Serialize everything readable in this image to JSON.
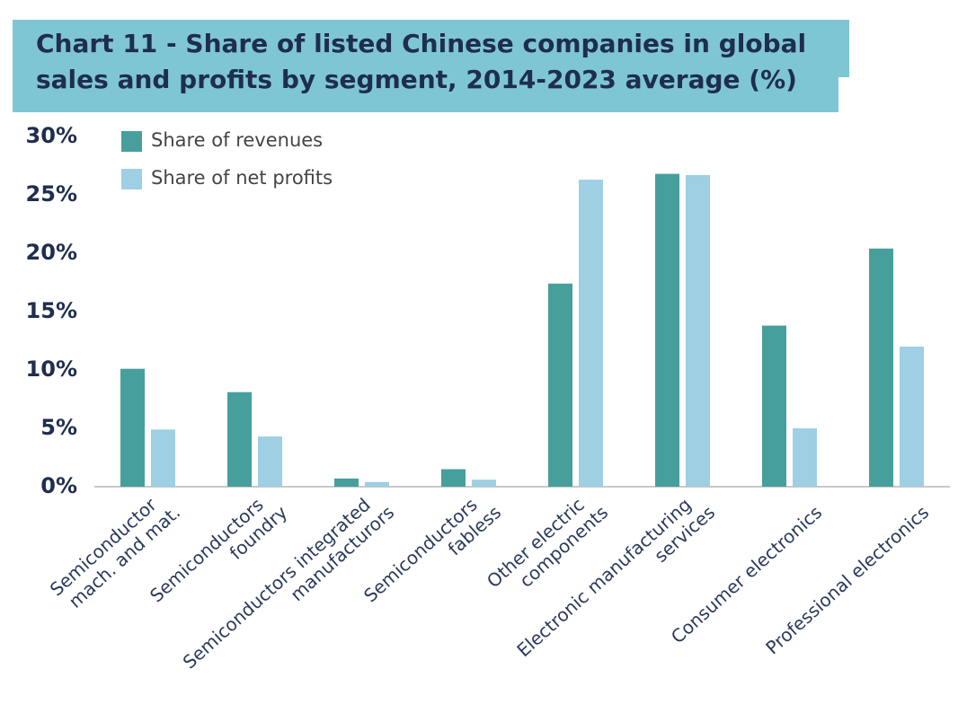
{
  "chart_data": {
    "type": "bar",
    "title": [
      "Chart 11 - Share of listed Chinese companies in global",
      "sales and profits by segment, 2014-2023 average (%)"
    ],
    "categories": [
      [
        "Semiconductor",
        "mach. and mat."
      ],
      [
        "Semiconductors",
        "foundry"
      ],
      [
        "Semiconductors integrated",
        "manufacturors"
      ],
      [
        "Semiconductors",
        "fabless"
      ],
      [
        "Other electric",
        "components"
      ],
      [
        "Electronic manufacturing",
        "services"
      ],
      [
        "Consumer electronics"
      ],
      [
        "Professional electronics"
      ]
    ],
    "series": [
      {
        "name": "Share of revenues",
        "color": "#479f9c",
        "values": [
          10.1,
          8.1,
          0.7,
          1.5,
          17.4,
          26.8,
          13.8,
          20.4
        ]
      },
      {
        "name": "Share of net profits",
        "color": "#9ecfe3",
        "values": [
          4.9,
          4.3,
          0.4,
          0.6,
          26.3,
          26.7,
          5.0,
          12.0
        ]
      }
    ],
    "ylim": [
      0,
      30
    ],
    "yticks": [
      {
        "value": 0,
        "label": "0%"
      },
      {
        "value": 5,
        "label": "5%"
      },
      {
        "value": 10,
        "label": "10%"
      },
      {
        "value": 15,
        "label": "15%"
      },
      {
        "value": 20,
        "label": "20%"
      },
      {
        "value": 25,
        "label": "25%"
      },
      {
        "value": 30,
        "label": "30%"
      }
    ],
    "grid": false
  }
}
